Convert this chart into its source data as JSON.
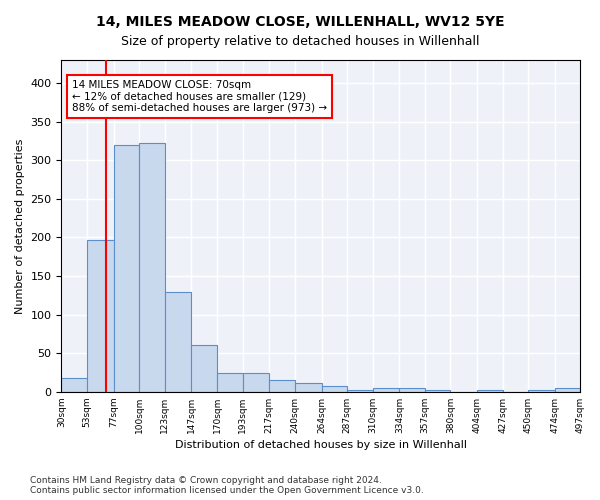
{
  "title": "14, MILES MEADOW CLOSE, WILLENHALL, WV12 5YE",
  "subtitle": "Size of property relative to detached houses in Willenhall",
  "xlabel": "Distribution of detached houses by size in Willenhall",
  "ylabel": "Number of detached properties",
  "bar_color": "#c9d9ed",
  "bar_edge_color": "#5b8fc9",
  "background_color": "#eef2f8",
  "grid_color": "#ffffff",
  "annotation_text": "14 MILES MEADOW CLOSE: 70sqm\n← 12% of detached houses are smaller (129)\n88% of semi-detached houses are larger (973) →",
  "annotation_box_color": "white",
  "annotation_box_edge_color": "red",
  "vline_x": 70,
  "vline_color": "red",
  "bin_edges": [
    30,
    53,
    77,
    100,
    123,
    147,
    170,
    193,
    217,
    240,
    264,
    287,
    310,
    334,
    357,
    380,
    404,
    427,
    450,
    474,
    497
  ],
  "bin_labels": [
    "30sqm",
    "53sqm",
    "77sqm",
    "100sqm",
    "123sqm",
    "147sqm",
    "170sqm",
    "193sqm",
    "217sqm",
    "240sqm",
    "264sqm",
    "287sqm",
    "310sqm",
    "334sqm",
    "357sqm",
    "380sqm",
    "404sqm",
    "427sqm",
    "450sqm",
    "474sqm",
    "497sqm"
  ],
  "bar_heights": [
    18,
    197,
    320,
    323,
    129,
    61,
    25,
    25,
    15,
    12,
    7,
    3,
    5,
    5,
    3,
    0,
    3,
    0,
    3,
    5
  ],
  "ylim": [
    0,
    430
  ],
  "yticks": [
    0,
    50,
    100,
    150,
    200,
    250,
    300,
    350,
    400
  ],
  "footnote": "Contains HM Land Registry data © Crown copyright and database right 2024.\nContains public sector information licensed under the Open Government Licence v3.0."
}
